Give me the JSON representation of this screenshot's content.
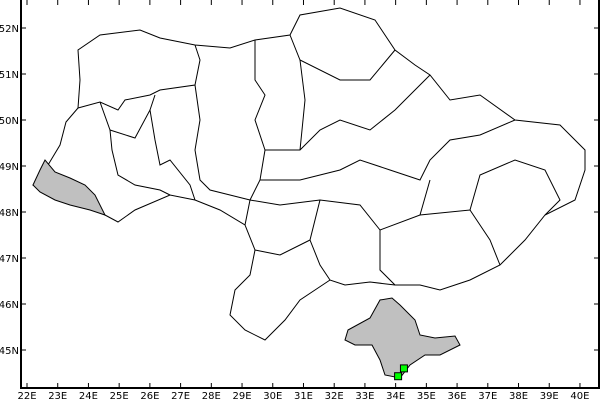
{
  "map": {
    "axes": {
      "x_ticks": [
        "22E",
        "23E",
        "24E",
        "25E",
        "26E",
        "27E",
        "28E",
        "29E",
        "30E",
        "31E",
        "32E",
        "33E",
        "34E",
        "35E",
        "36E",
        "37E",
        "38E",
        "39E",
        "40E"
      ],
      "x_values": [
        22,
        23,
        24,
        25,
        26,
        27,
        28,
        29,
        30,
        31,
        32,
        33,
        34,
        35,
        36,
        37,
        38,
        39,
        40
      ],
      "y_ticks": [
        "52N",
        "51N",
        "50N",
        "49N",
        "48N",
        "47N",
        "46N",
        "45N"
      ],
      "y_values": [
        52,
        51,
        50,
        49,
        48,
        47,
        46,
        45
      ]
    },
    "colors": {
      "land": "#ffffff",
      "border": "#000000",
      "highlighted_region": "#c0c0c0",
      "marker": "#00ff00"
    },
    "highlighted_regions": [
      "west-region",
      "crimea-region"
    ],
    "markers": [
      {
        "lon": 34.08,
        "lat": 44.43
      },
      {
        "lon": 34.27,
        "lat": 44.6
      }
    ]
  }
}
